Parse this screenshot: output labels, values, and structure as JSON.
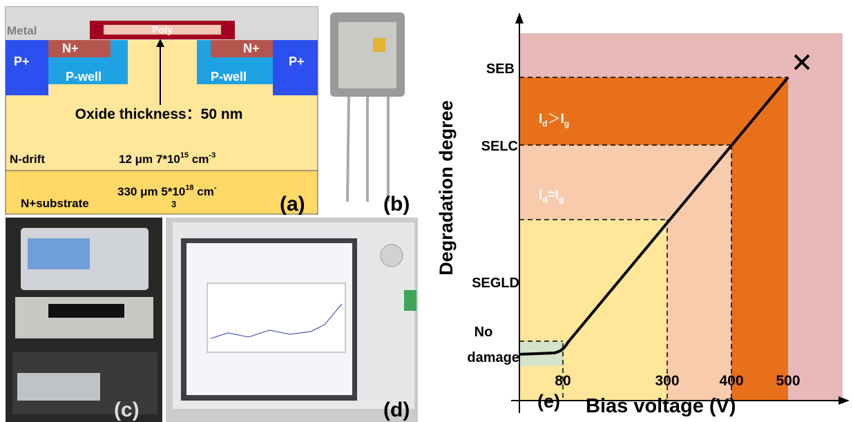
{
  "panel_a": {
    "metal": "Metal",
    "poly": "Poly",
    "p_plus_left": "P+",
    "p_plus_right": "P+",
    "n_plus_left": "N+",
    "n_plus_right": "N+",
    "p_well_left": "P-well",
    "p_well_right": "P-well",
    "oxide": "Oxide thickness：50 nm",
    "drift_label": "N-drift",
    "drift_spec": {
      "text": "12 μm 7*10",
      "exp": "15",
      "unit": " cm",
      "unit_exp": "-3"
    },
    "substrate_label": "N+substrate",
    "substrate_spec": {
      "text": "330 μm 5*10",
      "exp": "18",
      "unit": " cm",
      "unit_exp": "-",
      "sub": "3"
    },
    "tag": "(a)"
  },
  "panel_b": {
    "tag": "(b)"
  },
  "panel_c": {
    "tag": "(c)"
  },
  "panel_d": {
    "tag": "(d)"
  },
  "panel_e": {
    "y_axis_title": "Degradation degree",
    "x_axis_title": "Bias voltage (V)",
    "levels": {
      "seb": "SEB",
      "selc": "SELC",
      "segld": "SEGLD",
      "no_damage": [
        "No",
        "damage"
      ]
    },
    "region_high": {
      "a": "I",
      "a_sub": "d",
      "op": "＞",
      "b": "I",
      "b_sub": "g"
    },
    "region_mid": {
      "a": "I",
      "a_sub": "d",
      "op": "=",
      "b": "I",
      "b_sub": "g"
    },
    "xticks": [
      80,
      300,
      400,
      500
    ],
    "tag": "(e)"
  }
}
